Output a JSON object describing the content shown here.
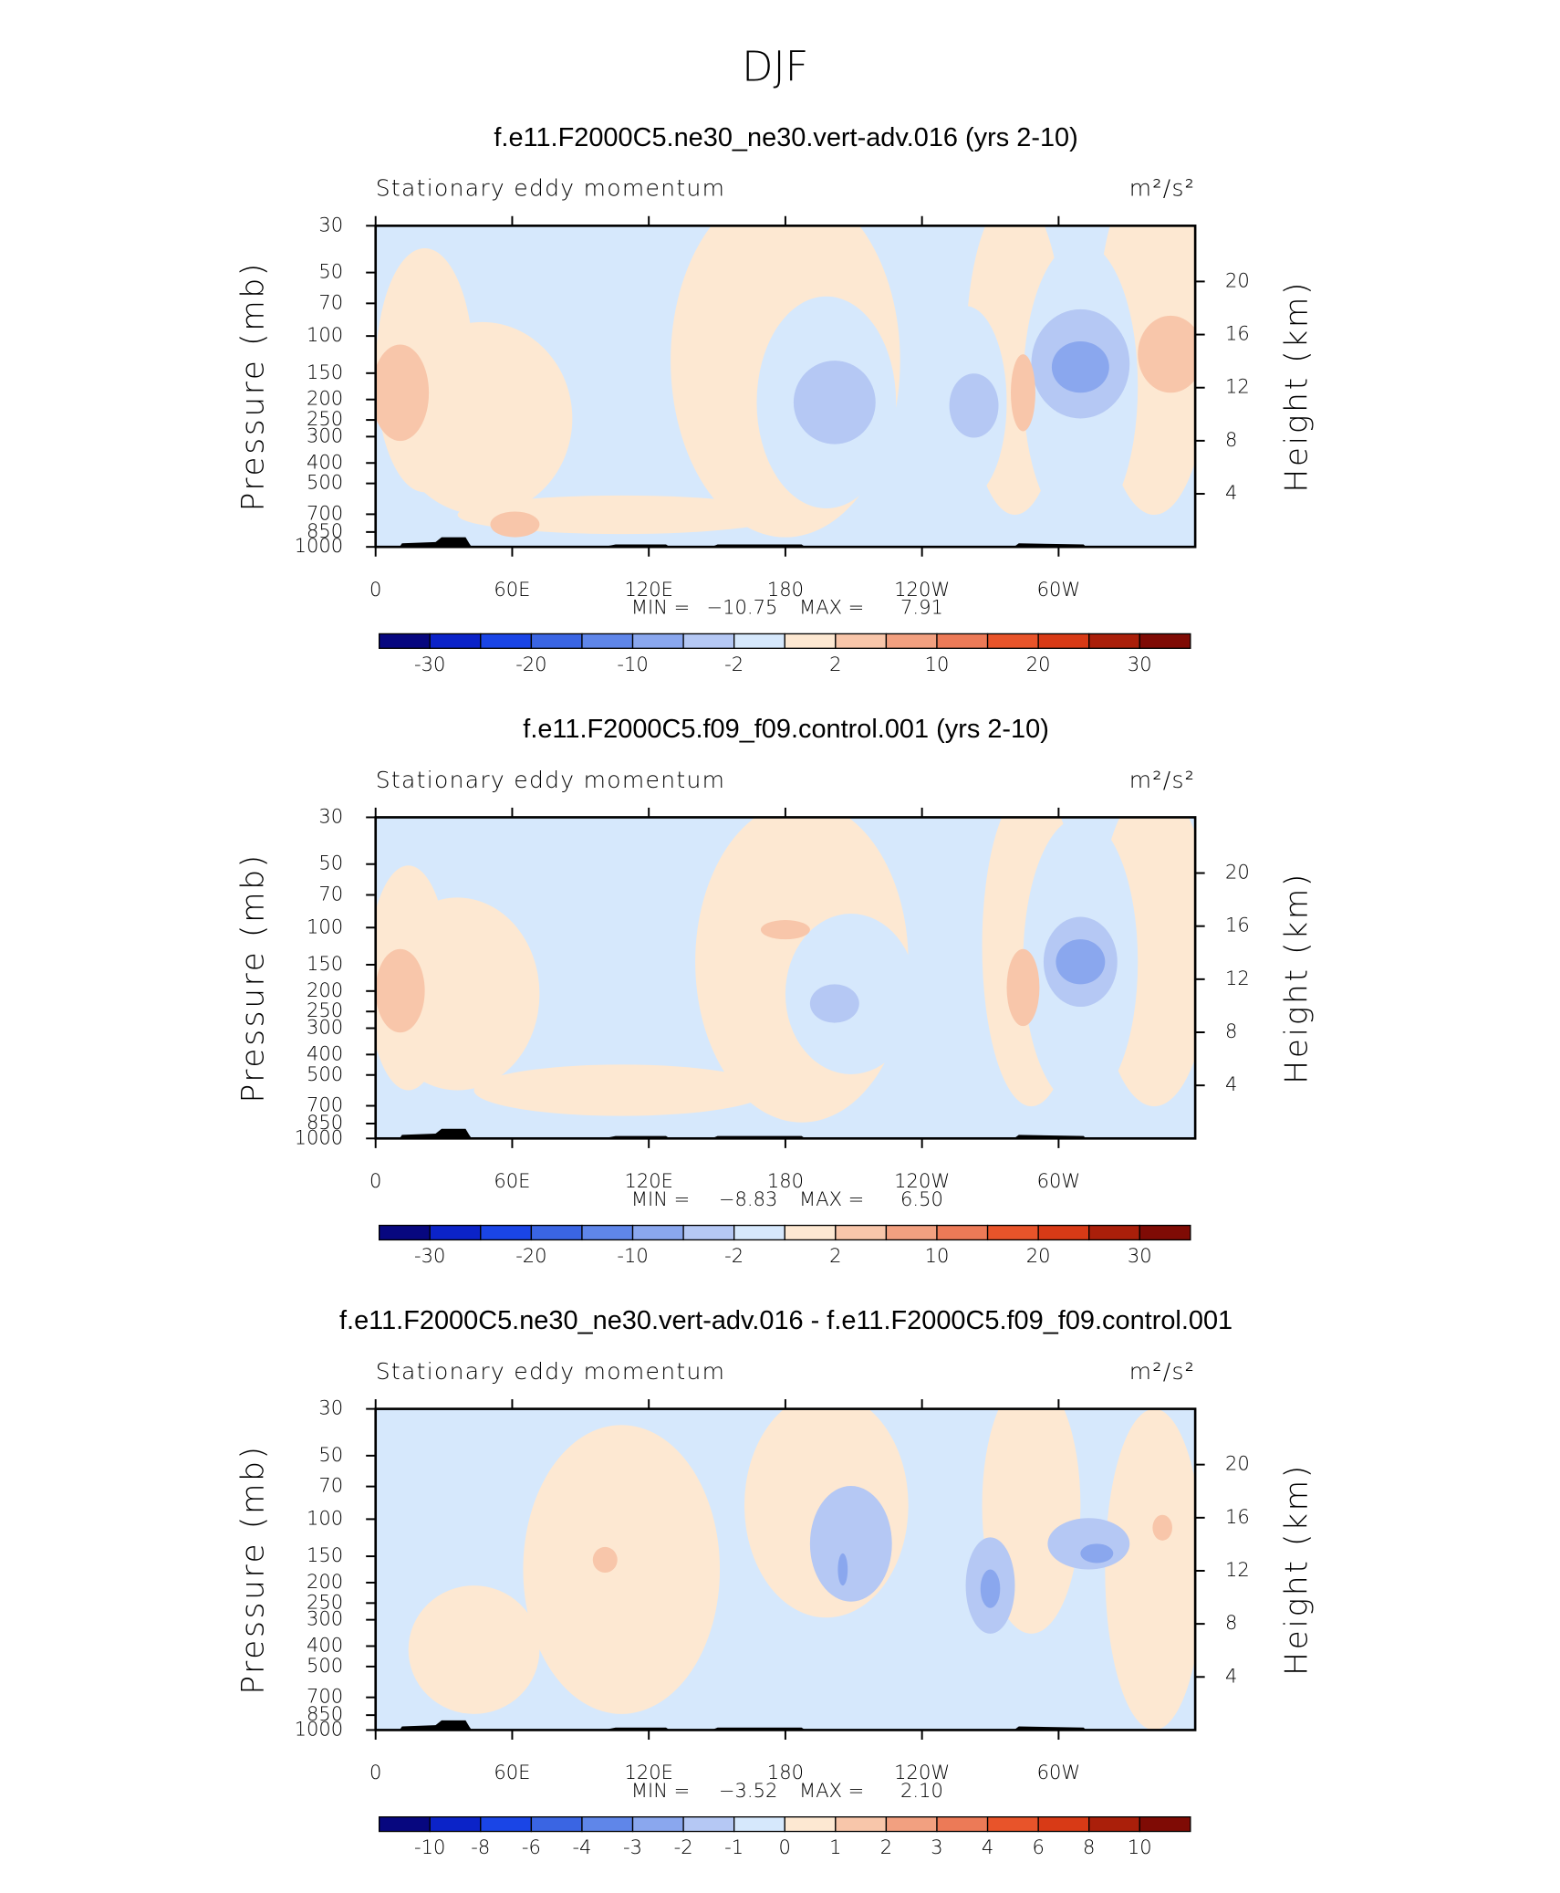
{
  "title": "DJF",
  "chart_data": [
    {
      "type": "contour",
      "title": "f.e11.F2000C5.ne30_ne30.vert-adv.016 (yrs 2-10)",
      "left_string": "Stationary eddy momentum",
      "units": "m²/s²",
      "ylabel": "Pressure (mb)",
      "y2label": "Height (km)",
      "log_y": true,
      "ylim": [
        1000,
        30
      ],
      "yticks": [
        30,
        50,
        70,
        100,
        150,
        200,
        250,
        300,
        400,
        500,
        700,
        850,
        1000
      ],
      "y2lim": [
        0,
        24.2
      ],
      "y2ticks": [
        4,
        8,
        12,
        16,
        20
      ],
      "xlim": [
        0,
        360
      ],
      "xticks": [
        0,
        {
          "value": 60,
          "label": "60E"
        },
        {
          "value": 120,
          "label": "120E"
        },
        180,
        {
          "value": 240,
          "label": "120W"
        },
        {
          "value": 300,
          "label": "60W"
        }
      ],
      "min_label": "MIN =",
      "min": {
        "value": -10.75,
        "label": "−10.75"
      },
      "max_label": "MAX =",
      "max": {
        "value": 7.91,
        "label": "7.91"
      },
      "colorbar": {
        "colors": [
          "#07077f",
          "#0b23c8",
          "#1a45e6",
          "#3a65e3",
          "#5f86e9",
          "#8aa7ee",
          "#b5c8f4",
          "#d6e8fc",
          "#fde8d2",
          "#f8c6aa",
          "#f2a080",
          "#ec7a57",
          "#e8542a",
          "#d83a16",
          "#aa1f0a",
          "#7f0b05"
        ],
        "levels": [
          -30,
          null,
          -20,
          null,
          -10,
          null,
          -2,
          null,
          2,
          null,
          10,
          null,
          20,
          null,
          30
        ]
      }
    },
    {
      "type": "contour",
      "title": "f.e11.F2000C5.f09_f09.control.001 (yrs 2-10)",
      "left_string": "Stationary eddy momentum",
      "units": "m²/s²",
      "ylabel": "Pressure (mb)",
      "y2label": "Height (km)",
      "log_y": true,
      "ylim": [
        1000,
        30
      ],
      "yticks": [
        30,
        50,
        70,
        100,
        150,
        200,
        250,
        300,
        400,
        500,
        700,
        850,
        1000
      ],
      "y2lim": [
        0,
        24.2
      ],
      "y2ticks": [
        4,
        8,
        12,
        16,
        20
      ],
      "xlim": [
        0,
        360
      ],
      "xticks": [
        0,
        {
          "value": 60,
          "label": "60E"
        },
        {
          "value": 120,
          "label": "120E"
        },
        180,
        {
          "value": 240,
          "label": "120W"
        },
        {
          "value": 300,
          "label": "60W"
        }
      ],
      "min_label": "MIN =",
      "min": {
        "value": -8.83,
        "label": "−8.83"
      },
      "max_label": "MAX =",
      "max": {
        "value": 6.5,
        "label": "6.50"
      },
      "colorbar": {
        "colors": [
          "#07077f",
          "#0b23c8",
          "#1a45e6",
          "#3a65e3",
          "#5f86e9",
          "#8aa7ee",
          "#b5c8f4",
          "#d6e8fc",
          "#fde8d2",
          "#f8c6aa",
          "#f2a080",
          "#ec7a57",
          "#e8542a",
          "#d83a16",
          "#aa1f0a",
          "#7f0b05"
        ],
        "levels": [
          -30,
          null,
          -20,
          null,
          -10,
          null,
          -2,
          null,
          2,
          null,
          10,
          null,
          20,
          null,
          30
        ]
      }
    },
    {
      "type": "contour",
      "title": "f.e11.F2000C5.ne30_ne30.vert-adv.016 - f.e11.F2000C5.f09_f09.control.001",
      "left_string": "Stationary eddy momentum",
      "units": "m²/s²",
      "ylabel": "Pressure (mb)",
      "y2label": "Height (km)",
      "log_y": true,
      "ylim": [
        1000,
        30
      ],
      "yticks": [
        30,
        50,
        70,
        100,
        150,
        200,
        250,
        300,
        400,
        500,
        700,
        850,
        1000
      ],
      "y2lim": [
        0,
        24.2
      ],
      "y2ticks": [
        4,
        8,
        12,
        16,
        20
      ],
      "xlim": [
        0,
        360
      ],
      "xticks": [
        0,
        {
          "value": 60,
          "label": "60E"
        },
        {
          "value": 120,
          "label": "120E"
        },
        180,
        {
          "value": 240,
          "label": "120W"
        },
        {
          "value": 300,
          "label": "60W"
        }
      ],
      "min_label": "MIN =",
      "min": {
        "value": -3.52,
        "label": "−3.52"
      },
      "max_label": "MAX =",
      "max": {
        "value": 2.1,
        "label": "2.10"
      },
      "colorbar": {
        "colors": [
          "#07077f",
          "#0b23c8",
          "#1a45e6",
          "#3a65e3",
          "#5f86e9",
          "#8aa7ee",
          "#b5c8f4",
          "#d6e8fc",
          "#fde8d2",
          "#f8c6aa",
          "#f2a080",
          "#ec7a57",
          "#e8542a",
          "#d83a16",
          "#aa1f0a",
          "#7f0b05"
        ],
        "levels": [
          -10,
          -8,
          -6,
          -4,
          -3,
          -2,
          -1,
          0,
          1,
          2,
          3,
          4,
          6,
          8,
          10
        ]
      }
    }
  ]
}
